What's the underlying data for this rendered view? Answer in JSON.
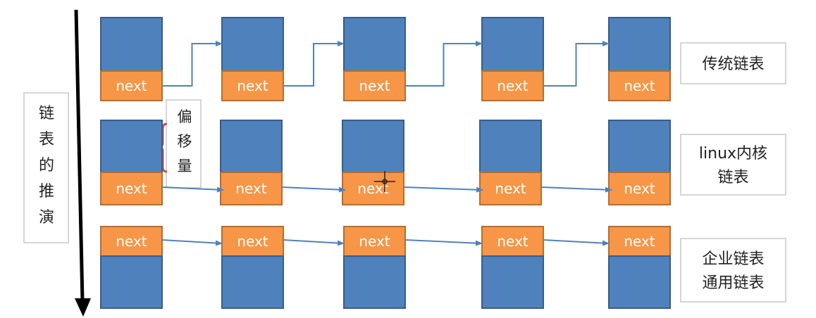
{
  "side_label": "链表的推演",
  "offset_label": "偏移量",
  "next_label": "next",
  "rows": [
    {
      "name": "traditional",
      "label_lines": [
        "传统链表"
      ]
    },
    {
      "name": "linux-kernel",
      "label_lines": [
        "linux内核",
        "链表"
      ]
    },
    {
      "name": "enterprise",
      "label_lines": [
        "企业链表",
        "通用链表"
      ]
    }
  ],
  "colors": {
    "data_fill": "#4f81bd",
    "next_fill": "#f79646",
    "arrow": "#4f81bd",
    "main_arrow": "#000000"
  }
}
